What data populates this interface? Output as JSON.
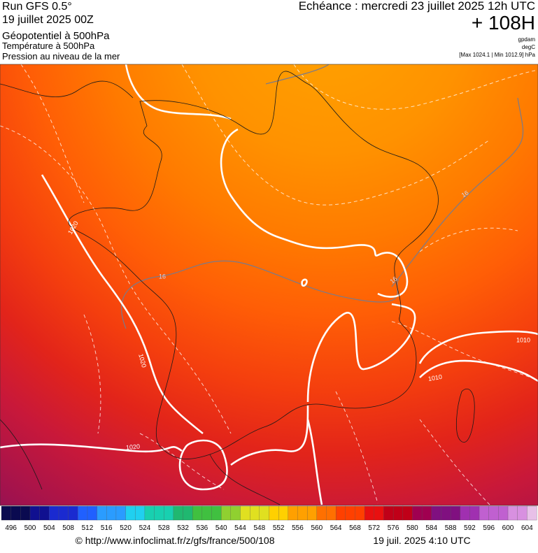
{
  "header": {
    "left": [
      "Run GFS 0.5°",
      "19 juillet 2025 00Z",
      "Géopotentiel à 500hPa",
      "Température à 500hPa",
      "Pression au niveau de la mer"
    ],
    "right": {
      "echeance": "Echéance : mercredi 23 juillet 2025 12h UTC",
      "lead": "+ 108H",
      "units": [
        "gpdam",
        "degC",
        "[Max 1024.1 | Min 1012.9] hPa"
      ]
    }
  },
  "map_labels": [
    "1020",
    "1020",
    "1020",
    "1010",
    "1010",
    "16",
    "16",
    "16"
  ],
  "colorbar": {
    "labels": [
      496,
      500,
      504,
      508,
      512,
      516,
      520,
      524,
      528,
      532,
      536,
      540,
      544,
      548,
      552,
      556,
      560,
      564,
      568,
      572,
      576,
      580,
      584,
      588,
      592,
      596,
      600,
      604
    ]
  },
  "footer": {
    "url": "© http://www.infoclimat.fr/z/gfs/france/500/108",
    "timestamp": "19 juil. 2025  4:10 UTC"
  }
}
